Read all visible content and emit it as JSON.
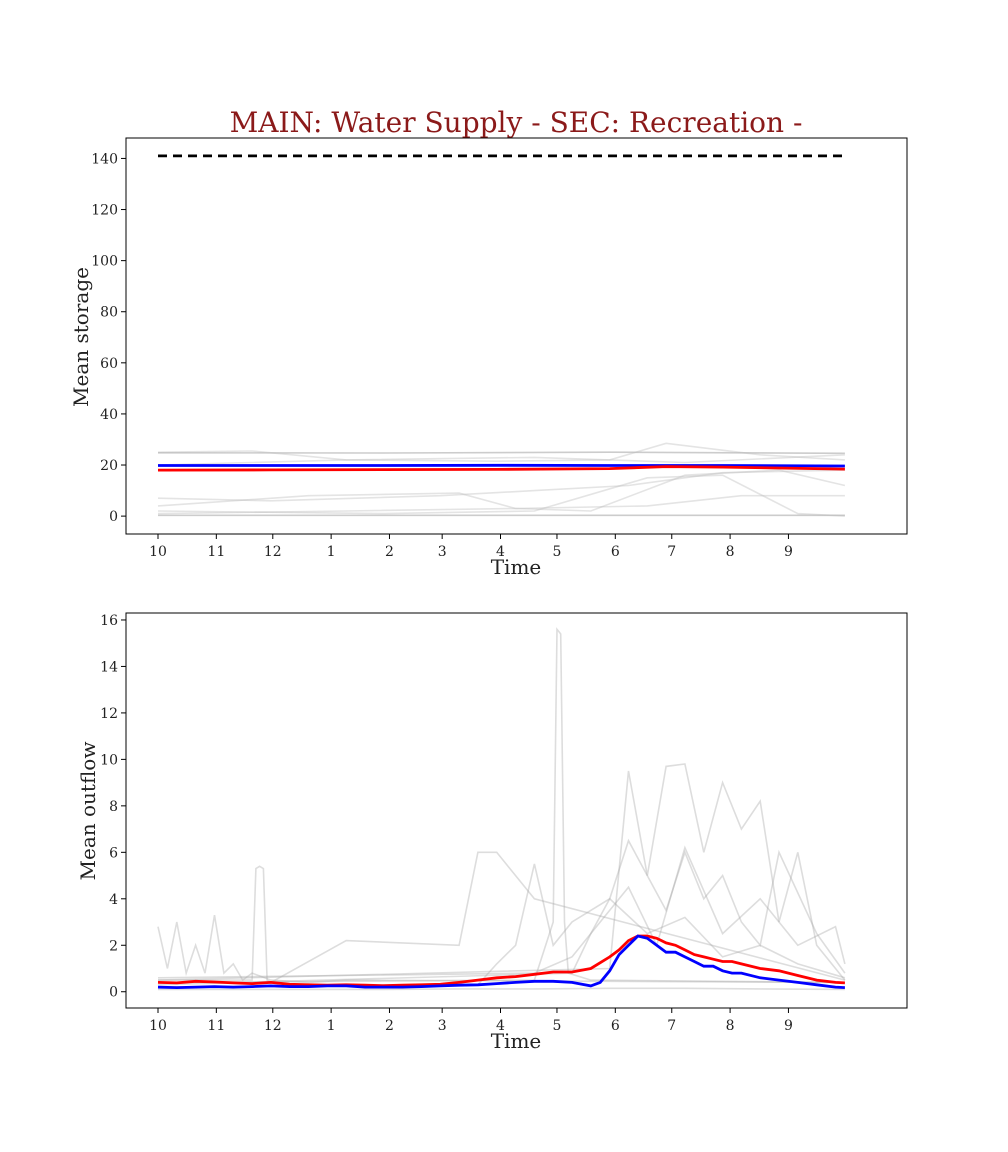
{
  "suptitle": "MAIN: Water Supply - SEC: Recreation -",
  "chart_data": [
    {
      "type": "line",
      "panel": "top",
      "xlabel": "Time",
      "ylabel": "Mean storage",
      "x_tick_labels": [
        "10",
        "11",
        "12",
        "1",
        "2",
        "3",
        "4",
        "5",
        "6",
        "7",
        "8",
        "9"
      ],
      "x_tick_days": [
        0,
        31,
        61,
        92,
        123,
        151,
        182,
        212,
        243,
        273,
        304,
        335
      ],
      "x_range_days": [
        -17,
        398
      ],
      "yticks": [
        0,
        20,
        40,
        60,
        80,
        100,
        120,
        140
      ],
      "ylim": [
        -7,
        148
      ],
      "series": [
        {
          "role": "capacity",
          "color": "#000000",
          "style": "dashed",
          "x": [
            0,
            365
          ],
          "y": [
            141,
            141
          ]
        },
        {
          "role": "highlight",
          "color": "#0000ff",
          "x": [
            0,
            60,
            120,
            180,
            240,
            300,
            365
          ],
          "y": [
            19.8,
            19.8,
            19.8,
            19.9,
            19.8,
            19.8,
            19.6
          ]
        },
        {
          "role": "highlight",
          "color": "#ff0000",
          "x": [
            0,
            60,
            120,
            180,
            240,
            270,
            300,
            365
          ],
          "y": [
            18.0,
            18.1,
            18.2,
            18.3,
            18.6,
            19.4,
            19.2,
            18.4
          ]
        },
        {
          "role": "ensemble",
          "color": "#808080",
          "x": [
            0,
            120,
            240,
            365
          ],
          "y": [
            24.8,
            24.7,
            25.0,
            24.6
          ]
        },
        {
          "role": "ensemble",
          "color": "#808080",
          "x": [
            0,
            365
          ],
          "y": [
            0.3,
            0.3
          ]
        },
        {
          "role": "ensemble",
          "color": "#bbbbbb",
          "x": [
            0,
            50,
            100,
            180,
            240,
            270,
            320,
            365
          ],
          "y": [
            25,
            25.5,
            22,
            21.5,
            22,
            28.5,
            24,
            22
          ]
        },
        {
          "role": "ensemble",
          "color": "#bbbbbb",
          "x": [
            0,
            60,
            150,
            200,
            250,
            300,
            365
          ],
          "y": [
            7,
            6,
            8,
            10,
            12,
            17,
            18
          ]
        },
        {
          "role": "ensemble",
          "color": "#bbbbbb",
          "x": [
            0,
            80,
            160,
            190,
            260,
            310,
            365
          ],
          "y": [
            4,
            8,
            9,
            3,
            4,
            8,
            8
          ]
        },
        {
          "role": "ensemble",
          "color": "#bbbbbb",
          "x": [
            0,
            100,
            190,
            230,
            280,
            330,
            365
          ],
          "y": [
            1,
            2,
            3,
            2,
            16,
            18,
            12
          ]
        },
        {
          "role": "ensemble",
          "color": "#bbbbbb",
          "x": [
            0,
            120,
            200,
            260,
            300,
            340,
            365
          ],
          "y": [
            2,
            1,
            2,
            15,
            16,
            1,
            0
          ]
        },
        {
          "role": "ensemble",
          "color": "#bbbbbb",
          "x": [
            0,
            100,
            200,
            280,
            365
          ],
          "y": [
            20,
            22,
            23,
            21,
            24
          ]
        }
      ]
    },
    {
      "type": "line",
      "panel": "bottom",
      "xlabel": "Time",
      "ylabel": "Mean outflow",
      "x_tick_labels": [
        "10",
        "11",
        "12",
        "1",
        "2",
        "3",
        "4",
        "5",
        "6",
        "7",
        "8",
        "9"
      ],
      "x_tick_days": [
        0,
        31,
        61,
        92,
        123,
        151,
        182,
        212,
        243,
        273,
        304,
        335
      ],
      "x_range_days": [
        -17,
        398
      ],
      "yticks": [
        0,
        2,
        4,
        6,
        8,
        10,
        12,
        14,
        16
      ],
      "ylim": [
        -0.7,
        16.3
      ],
      "series": [
        {
          "role": "highlight",
          "color": "#ff0000",
          "x": [
            0,
            10,
            20,
            30,
            40,
            50,
            60,
            70,
            80,
            90,
            100,
            110,
            120,
            130,
            140,
            150,
            160,
            170,
            180,
            190,
            200,
            210,
            220,
            230,
            240,
            245,
            250,
            255,
            260,
            265,
            270,
            275,
            280,
            285,
            290,
            295,
            300,
            305,
            310,
            320,
            330,
            340,
            350,
            360,
            365
          ],
          "y": [
            0.4,
            0.38,
            0.45,
            0.42,
            0.38,
            0.35,
            0.4,
            0.32,
            0.3,
            0.28,
            0.3,
            0.28,
            0.26,
            0.28,
            0.3,
            0.32,
            0.4,
            0.5,
            0.6,
            0.65,
            0.75,
            0.85,
            0.85,
            1.0,
            1.5,
            1.8,
            2.2,
            2.4,
            2.4,
            2.3,
            2.1,
            2.0,
            1.8,
            1.6,
            1.5,
            1.4,
            1.3,
            1.3,
            1.2,
            1.0,
            0.9,
            0.7,
            0.5,
            0.4,
            0.38
          ]
        },
        {
          "role": "highlight",
          "color": "#0000ff",
          "x": [
            0,
            10,
            20,
            30,
            40,
            50,
            60,
            70,
            80,
            90,
            100,
            110,
            120,
            130,
            140,
            150,
            160,
            170,
            180,
            190,
            200,
            210,
            220,
            230,
            235,
            240,
            245,
            250,
            255,
            260,
            265,
            270,
            275,
            280,
            285,
            290,
            295,
            300,
            305,
            310,
            320,
            330,
            340,
            350,
            360,
            365
          ],
          "y": [
            0.2,
            0.18,
            0.2,
            0.22,
            0.2,
            0.22,
            0.25,
            0.22,
            0.22,
            0.25,
            0.25,
            0.2,
            0.2,
            0.2,
            0.22,
            0.25,
            0.28,
            0.3,
            0.35,
            0.4,
            0.45,
            0.45,
            0.4,
            0.25,
            0.4,
            0.9,
            1.6,
            2.0,
            2.4,
            2.3,
            2.0,
            1.7,
            1.7,
            1.5,
            1.3,
            1.1,
            1.1,
            0.9,
            0.8,
            0.8,
            0.6,
            0.5,
            0.4,
            0.3,
            0.2,
            0.18
          ]
        },
        {
          "role": "ensemble",
          "color": "#aaaaaa",
          "x": [
            0,
            50,
            52,
            54,
            56,
            58,
            60,
            100,
            160,
            170,
            180,
            200,
            365
          ],
          "y": [
            0.5,
            0.5,
            5.3,
            5.4,
            5.3,
            0.5,
            0.4,
            2.2,
            2.0,
            6.0,
            6.0,
            4.0,
            0.5
          ]
        },
        {
          "role": "ensemble",
          "color": "#aaaaaa",
          "x": [
            0,
            200,
            210,
            212,
            214,
            216,
            218,
            230,
            365
          ],
          "y": [
            0.4,
            0.5,
            3.0,
            15.6,
            15.4,
            3.0,
            0.8,
            0.5,
            0.4
          ]
        },
        {
          "role": "ensemble",
          "color": "#aaaaaa",
          "x": [
            0,
            240,
            250,
            260,
            270,
            280,
            290,
            300,
            310,
            320,
            330,
            340,
            350,
            360,
            365
          ],
          "y": [
            0.5,
            1.0,
            9.5,
            5.0,
            9.7,
            9.8,
            6.0,
            9.0,
            7.0,
            8.2,
            3.0,
            6.0,
            2.0,
            1.0,
            0.5
          ]
        },
        {
          "role": "ensemble",
          "color": "#aaaaaa",
          "x": [
            0,
            5,
            10,
            15,
            20,
            25,
            30,
            35,
            40,
            45,
            50,
            60,
            80,
            100,
            365
          ],
          "y": [
            2.8,
            1.0,
            3.0,
            0.8,
            2.0,
            0.8,
            3.3,
            0.8,
            1.2,
            0.5,
            0.8,
            0.5,
            0.4,
            0.5,
            0.4
          ]
        },
        {
          "role": "ensemble",
          "color": "#aaaaaa",
          "x": [
            0,
            220,
            230,
            240,
            250,
            260,
            270,
            280,
            290,
            300,
            310,
            320,
            330,
            350,
            365
          ],
          "y": [
            0.3,
            0.8,
            2.5,
            4.0,
            6.5,
            5.0,
            3.5,
            6.0,
            4.0,
            5.0,
            3.0,
            2.0,
            6.0,
            2.5,
            0.8
          ]
        },
        {
          "role": "ensemble",
          "color": "#aaaaaa",
          "x": [
            0,
            170,
            180,
            190,
            200,
            210,
            220,
            240,
            260,
            280,
            300,
            320,
            340,
            365
          ],
          "y": [
            0.2,
            0.3,
            1.2,
            2.0,
            5.5,
            2.0,
            3.0,
            4.0,
            2.5,
            3.2,
            1.5,
            2.0,
            1.2,
            0.6
          ]
        },
        {
          "role": "ensemble",
          "color": "#aaaaaa",
          "x": [
            0,
            40,
            80,
            120,
            160,
            200,
            240,
            280,
            320,
            365
          ],
          "y": [
            0.1,
            0.1,
            0.1,
            0.1,
            0.12,
            0.12,
            0.15,
            0.15,
            0.12,
            0.1
          ]
        },
        {
          "role": "ensemble",
          "color": "#aaaaaa",
          "x": [
            0,
            200,
            220,
            235,
            250,
            265,
            280,
            300,
            320,
            340,
            360,
            365
          ],
          "y": [
            0.6,
            0.8,
            1.5,
            3.0,
            4.5,
            2.0,
            6.2,
            2.5,
            4.0,
            2.0,
            2.8,
            1.2
          ]
        }
      ]
    }
  ]
}
